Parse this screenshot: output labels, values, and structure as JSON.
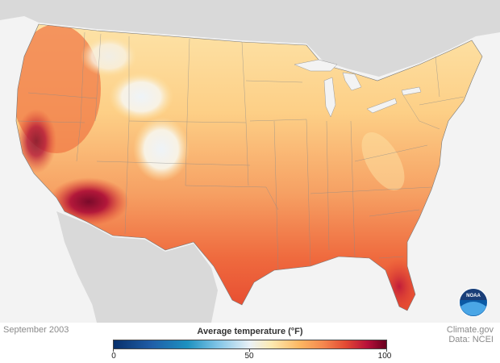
{
  "map": {
    "date": "September 2003",
    "legend": {
      "title": "Average temperature (°F)",
      "min_label": "0",
      "mid_label": "50",
      "max_label": "100",
      "colors": [
        "#08306b",
        "#1d91c0",
        "#eaf1f6",
        "#fdb863",
        "#e34a33",
        "#67001f"
      ]
    },
    "credit": {
      "source": "Climate.gov",
      "data": "Data: NCEI"
    },
    "logo_text": "NOAA"
  },
  "colors": {
    "background": "#f3f3f3",
    "land": "#d9d9d9",
    "warm_south": "#ef5a36",
    "hot_southwest": "#8b0a2e",
    "cool_north": "#fde4a0",
    "cold_mountains": "#e6eef5",
    "noaa_blue": "#0a5aa5"
  }
}
